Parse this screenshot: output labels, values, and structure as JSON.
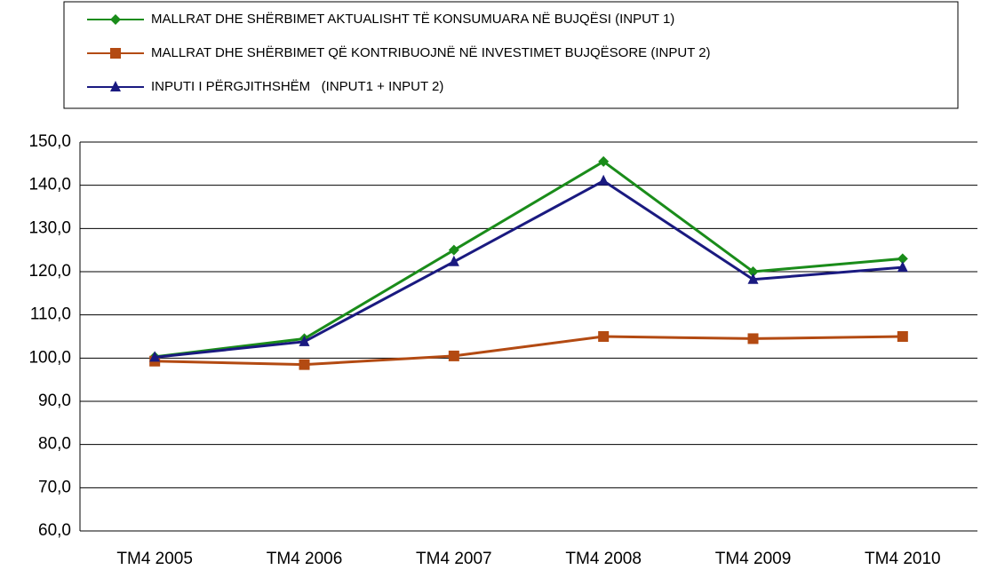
{
  "chart_data": {
    "type": "line",
    "categories": [
      "TM4 2005",
      "TM4 2006",
      "TM4 2007",
      "TM4 2008",
      "TM4 2009",
      "TM4 2010"
    ],
    "series": [
      {
        "name": "MALLRAT DHE SHËRBIMET AKTUALISHT TË KONSUMUARA NË BUJQËSI (INPUT 1)",
        "color": "#1a8c1a",
        "marker": "diamond",
        "values": [
          100.3,
          104.5,
          125.0,
          145.5,
          120.0,
          123.0
        ]
      },
      {
        "name": "MALLRAT DHE SHËRBIMET QË KONTRIBUOJNË NË INVESTIMET BUJQËSORE (INPUT 2)",
        "color": "#b34a12",
        "marker": "square",
        "values": [
          99.3,
          98.5,
          100.5,
          105.0,
          104.5,
          105.0
        ]
      },
      {
        "name": "INPUTI I PËRGJITHSHËM   (INPUT1 + INPUT 2)",
        "color": "#1a1a80",
        "marker": "triangle",
        "values": [
          100.2,
          103.8,
          122.3,
          141.0,
          118.2,
          121.0
        ]
      }
    ],
    "ylim": [
      60,
      150
    ],
    "yticks": [
      {
        "value": 60,
        "label": "60,0"
      },
      {
        "value": 70,
        "label": "70,0"
      },
      {
        "value": 80,
        "label": "80,0"
      },
      {
        "value": 90,
        "label": "90,0"
      },
      {
        "value": 100,
        "label": "100,0"
      },
      {
        "value": 110,
        "label": "110,0"
      },
      {
        "value": 120,
        "label": "120,0"
      },
      {
        "value": 130,
        "label": "130,0"
      },
      {
        "value": 140,
        "label": "140,0"
      },
      {
        "value": 150,
        "label": "150,0"
      }
    ],
    "grid": true
  }
}
